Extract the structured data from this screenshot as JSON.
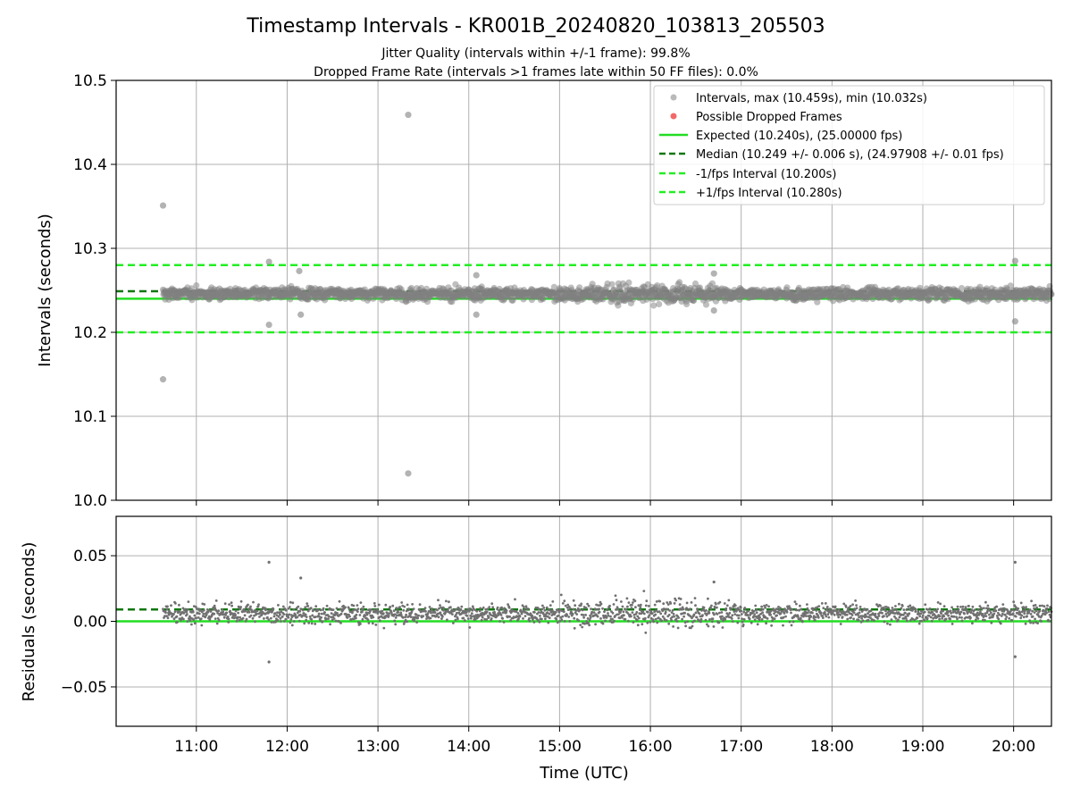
{
  "figure": {
    "title": "Timestamp Intervals - KR001B_20240820_103813_205503",
    "subtitle_1": "Jitter Quality (intervals within +/-1 frame): 99.8%",
    "subtitle_2": "Dropped Frame Rate (intervals >1 frames late within 50 FF files): 0.0%"
  },
  "chart_data": [
    {
      "type": "scatter",
      "title": "Timestamp Intervals - KR001B_20240820_103813_205503",
      "xlabel": "",
      "ylabel": "Intervals (seconds)",
      "xlim": [
        "10:07",
        "20:25"
      ],
      "ylim": [
        10.0,
        10.5
      ],
      "y_ticks": [
        "10.0",
        "10.1",
        "10.2",
        "10.3",
        "10.4",
        "10.5"
      ],
      "x_ticks": [
        "11:00",
        "12:00",
        "13:00",
        "14:00",
        "15:00",
        "16:00",
        "17:00",
        "18:00",
        "19:00",
        "20:00"
      ],
      "grid": true,
      "legend_position": "top-right",
      "x_start": "10:38",
      "x_end": "20:25",
      "point_count": 2000,
      "colors": {
        "intervals": "#808080",
        "dropped": "#ef4f4f",
        "expected": "#22dd22",
        "median": "#117711",
        "bounds": "#22ee22"
      },
      "series": [
        {
          "name": "Intervals, max (10.459s), min (10.032s)",
          "kind": "scatter",
          "baseline": 10.246,
          "spread": 0.006,
          "outliers": [
            {
              "x": "10:38",
              "y": 10.351
            },
            {
              "x": "10:38",
              "y": 10.144
            },
            {
              "x": "11:48",
              "y": 10.284
            },
            {
              "x": "11:48",
              "y": 10.209
            },
            {
              "x": "12:08",
              "y": 10.273
            },
            {
              "x": "12:09",
              "y": 10.221
            },
            {
              "x": "13:20",
              "y": 10.459
            },
            {
              "x": "13:20",
              "y": 10.032
            },
            {
              "x": "14:05",
              "y": 10.221
            },
            {
              "x": "14:05",
              "y": 10.268
            },
            {
              "x": "16:42",
              "y": 10.27
            },
            {
              "x": "16:42",
              "y": 10.226
            },
            {
              "x": "20:01",
              "y": 10.285
            },
            {
              "x": "20:01",
              "y": 10.213
            }
          ]
        },
        {
          "name": "Possible Dropped Frames",
          "kind": "scatter",
          "points": []
        },
        {
          "name": "Expected (10.240s), (25.00000 fps)",
          "kind": "hline",
          "y": 10.24
        },
        {
          "name": "Median (10.249 +/- 0.006 s), (24.97908 +/- 0.01 fps)",
          "kind": "hline",
          "y": 10.249
        },
        {
          "name": "-1/fps Interval (10.200s)",
          "kind": "hline",
          "y": 10.2
        },
        {
          "name": "+1/fps Interval (10.280s)",
          "kind": "hline",
          "y": 10.28
        }
      ]
    },
    {
      "type": "scatter",
      "xlabel": "Time (UTC)",
      "ylabel": "Residuals (seconds)",
      "xlim": [
        "10:07",
        "20:25"
      ],
      "ylim": [
        -0.08,
        0.08
      ],
      "y_ticks": [
        "−0.05",
        "0.00",
        "0.05"
      ],
      "x_ticks": [
        "11:00",
        "12:00",
        "13:00",
        "14:00",
        "15:00",
        "16:00",
        "17:00",
        "18:00",
        "19:00",
        "20:00"
      ],
      "grid": true,
      "residual_baseline": 0.006,
      "residual_spread": 0.006,
      "expected_line": 0.0,
      "median_line": 0.009,
      "outliers": [
        {
          "x": "11:48",
          "y": 0.045
        },
        {
          "x": "11:48",
          "y": -0.031
        },
        {
          "x": "12:09",
          "y": 0.033
        },
        {
          "x": "16:42",
          "y": 0.03
        },
        {
          "x": "20:01",
          "y": 0.045
        },
        {
          "x": "20:01",
          "y": -0.027
        }
      ]
    }
  ]
}
